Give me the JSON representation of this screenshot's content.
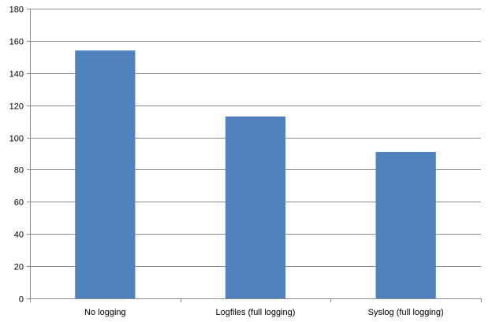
{
  "chart_data": {
    "type": "bar",
    "categories": [
      "No logging",
      "Logfiles (full logging)",
      "Syslog (full logging)"
    ],
    "values": [
      154,
      113,
      91
    ],
    "title": "",
    "xlabel": "",
    "ylabel": "",
    "ylim": [
      0,
      180
    ],
    "yticks": [
      "0",
      "20",
      "40",
      "60",
      "80",
      "100",
      "120",
      "140",
      "160",
      "180"
    ],
    "grid": true,
    "legend": "none",
    "bar_color": "#4f81bd"
  }
}
